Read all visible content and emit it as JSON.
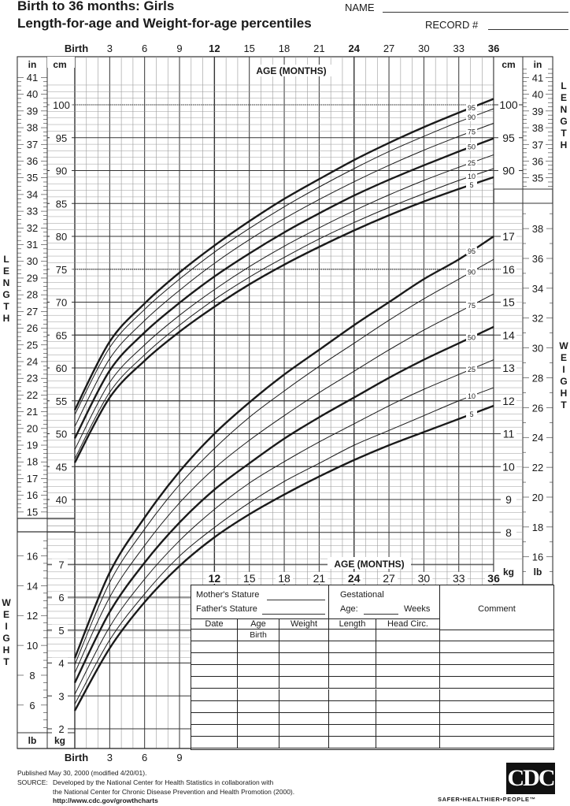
{
  "header": {
    "title_line1": "Birth to 36 months: Girls",
    "title_line2": "Length-for-age and Weight-for-age percentiles",
    "name_label": "NAME",
    "name_value": "",
    "record_label": "RECORD #",
    "record_value": ""
  },
  "axes": {
    "top_months": [
      "Birth",
      "3",
      "6",
      "9",
      "12",
      "15",
      "18",
      "21",
      "24",
      "27",
      "30",
      "33",
      "36"
    ],
    "top_months_bold": [
      "Birth",
      "12",
      "24",
      "36"
    ],
    "bottom_months_left": [
      "Birth",
      "3",
      "6",
      "9"
    ],
    "mid_months": [
      "12",
      "15",
      "18",
      "21",
      "24",
      "27",
      "30",
      "33",
      "36"
    ],
    "age_label": "AGE (MONTHS)",
    "length_unit_in": "in",
    "length_unit_cm": "cm",
    "weight_unit_lb": "lb",
    "weight_unit_kg": "kg",
    "length_vertical": "LENGTH",
    "weight_vertical": "WEIGHT",
    "length_in_ticks_left": [
      "41",
      "40",
      "39",
      "38",
      "37",
      "36",
      "35",
      "34",
      "33",
      "32",
      "31",
      "30",
      "29",
      "28",
      "27",
      "26",
      "25",
      "24",
      "23",
      "22",
      "21",
      "20",
      "19",
      "18",
      "17",
      "16",
      "15"
    ],
    "length_cm_ticks_left": [
      "100",
      "95",
      "90",
      "85",
      "80",
      "75",
      "70",
      "65",
      "60",
      "55",
      "50",
      "45",
      "40"
    ],
    "length_cm_ticks_right": [
      "100",
      "95",
      "90"
    ],
    "length_in_ticks_right": [
      "41",
      "40",
      "39",
      "38",
      "37",
      "36",
      "35"
    ],
    "weight_kg_ticks_right": [
      "17",
      "16",
      "15",
      "14",
      "13",
      "12",
      "11",
      "10",
      "9",
      "8"
    ],
    "weight_lb_ticks_right": [
      "38",
      "36",
      "34",
      "32",
      "30",
      "28",
      "26",
      "24",
      "22",
      "20",
      "18",
      "16"
    ],
    "weight_kg_ticks_left": [
      "7",
      "6",
      "5",
      "4",
      "3",
      "2"
    ],
    "weight_lb_ticks_left": [
      "16",
      "14",
      "12",
      "10",
      "8",
      "6"
    ]
  },
  "record_table": {
    "mother_label": "Mother's Stature",
    "father_label": "Father's Stature",
    "gestational_label": "Gestational",
    "age_label": "Age:",
    "weeks_label": "Weeks",
    "comment_label": "Comment",
    "columns": [
      "Date",
      "Age",
      "Weight",
      "Length",
      "Head  Circ."
    ],
    "rows": [
      [
        "",
        "Birth",
        "",
        "",
        "",
        ""
      ],
      [
        "",
        "",
        "",
        "",
        "",
        ""
      ],
      [
        "",
        "",
        "",
        "",
        "",
        ""
      ],
      [
        "",
        "",
        "",
        "",
        "",
        ""
      ],
      [
        "",
        "",
        "",
        "",
        "",
        ""
      ],
      [
        "",
        "",
        "",
        "",
        "",
        ""
      ],
      [
        "",
        "",
        "",
        "",
        "",
        ""
      ],
      [
        "",
        "",
        "",
        "",
        "",
        ""
      ],
      [
        "",
        "",
        "",
        "",
        "",
        ""
      ],
      [
        "",
        "",
        "",
        "",
        "",
        ""
      ]
    ]
  },
  "footer": {
    "published": "Published May 30, 2000 (modified 4/20/01).",
    "source_label": "SOURCE:",
    "source_line1": "Developed by the National Center for Health Statistics in collaboration with",
    "source_line2": "the National Center for Chronic Disease Prevention and Health Promotion (2000).",
    "url": "http://www.cdc.gov/growthcharts",
    "logo_text": "CDC",
    "tagline": "SAFER•HEALTHIER•PEOPLE™"
  },
  "colors": {
    "line": "#1a1a1a",
    "grid_minor": "#9a9a9a",
    "grid_major": "#333333",
    "bg": "#ffffff"
  },
  "chart_data": [
    {
      "type": "line",
      "title": "Length-for-age percentiles, Girls Birth to 36 months",
      "xlabel": "AGE (MONTHS)",
      "ylabel": "LENGTH (cm)",
      "xlim": [
        0,
        36
      ],
      "ylim": [
        37,
        104
      ],
      "grid": true,
      "x": [
        0,
        3,
        6,
        9,
        12,
        15,
        18,
        21,
        24,
        27,
        30,
        33,
        36
      ],
      "series": [
        {
          "name": "95",
          "values": [
            53.6,
            64.0,
            69.8,
            74.5,
            78.6,
            82.3,
            85.7,
            88.7,
            91.6,
            94.2,
            96.6,
            98.8,
            100.9
          ]
        },
        {
          "name": "90",
          "values": [
            52.9,
            63.1,
            68.9,
            73.5,
            77.6,
            81.2,
            84.5,
            87.5,
            90.3,
            92.9,
            95.2,
            97.4,
            99.4
          ]
        },
        {
          "name": "75",
          "values": [
            51.1,
            61.4,
            67.2,
            71.8,
            75.9,
            79.5,
            82.7,
            85.6,
            88.3,
            90.8,
            93.1,
            95.2,
            97.2
          ]
        },
        {
          "name": "50",
          "values": [
            49.3,
            59.6,
            65.4,
            69.9,
            73.9,
            77.4,
            80.6,
            83.5,
            86.2,
            88.6,
            90.8,
            92.9,
            94.9
          ]
        },
        {
          "name": "25",
          "values": [
            47.6,
            57.8,
            63.5,
            68.0,
            71.9,
            75.4,
            78.5,
            81.3,
            83.9,
            86.3,
            88.5,
            90.5,
            92.4
          ]
        },
        {
          "name": "10",
          "values": [
            46.2,
            56.3,
            62.0,
            66.5,
            70.4,
            73.8,
            76.8,
            79.6,
            82.1,
            84.4,
            86.5,
            88.5,
            90.3
          ]
        },
        {
          "name": "5",
          "values": [
            45.6,
            55.5,
            61.1,
            65.5,
            69.3,
            72.7,
            75.7,
            78.4,
            80.9,
            83.2,
            85.3,
            87.2,
            89.0
          ]
        }
      ]
    },
    {
      "type": "line",
      "title": "Weight-for-age percentiles, Girls Birth to 36 months",
      "xlabel": "AGE (MONTHS)",
      "ylabel": "WEIGHT (kg)",
      "xlim": [
        0,
        36
      ],
      "ylim": [
        1.5,
        17.5
      ],
      "grid": true,
      "x": [
        0,
        3,
        6,
        9,
        12,
        15,
        18,
        21,
        24,
        27,
        30,
        33,
        36
      ],
      "series": [
        {
          "name": "95",
          "values": [
            4.15,
            6.75,
            8.45,
            9.85,
            11.0,
            11.95,
            12.8,
            13.55,
            14.3,
            15.0,
            15.7,
            16.3,
            17.0
          ]
        },
        {
          "name": "90",
          "values": [
            3.95,
            6.45,
            8.1,
            9.45,
            10.55,
            11.5,
            12.3,
            13.05,
            13.75,
            14.45,
            15.1,
            15.7,
            16.3
          ]
        },
        {
          "name": "75",
          "values": [
            3.7,
            6.0,
            7.6,
            8.9,
            9.95,
            10.8,
            11.55,
            12.25,
            12.9,
            13.55,
            14.15,
            14.7,
            15.25
          ]
        },
        {
          "name": "50",
          "values": [
            3.4,
            5.55,
            7.05,
            8.3,
            9.3,
            10.1,
            10.85,
            11.5,
            12.1,
            12.7,
            13.25,
            13.75,
            14.25
          ]
        },
        {
          "name": "25",
          "values": [
            3.05,
            5.1,
            6.55,
            7.75,
            8.7,
            9.5,
            10.15,
            10.75,
            11.3,
            11.85,
            12.35,
            12.8,
            13.25
          ]
        },
        {
          "name": "10",
          "values": [
            2.75,
            4.7,
            6.1,
            7.25,
            8.15,
            8.9,
            9.55,
            10.1,
            10.65,
            11.1,
            11.55,
            12.0,
            12.4
          ]
        },
        {
          "name": "5",
          "values": [
            2.55,
            4.45,
            5.85,
            6.95,
            7.85,
            8.55,
            9.15,
            9.7,
            10.2,
            10.65,
            11.05,
            11.45,
            11.85
          ]
        }
      ]
    }
  ]
}
